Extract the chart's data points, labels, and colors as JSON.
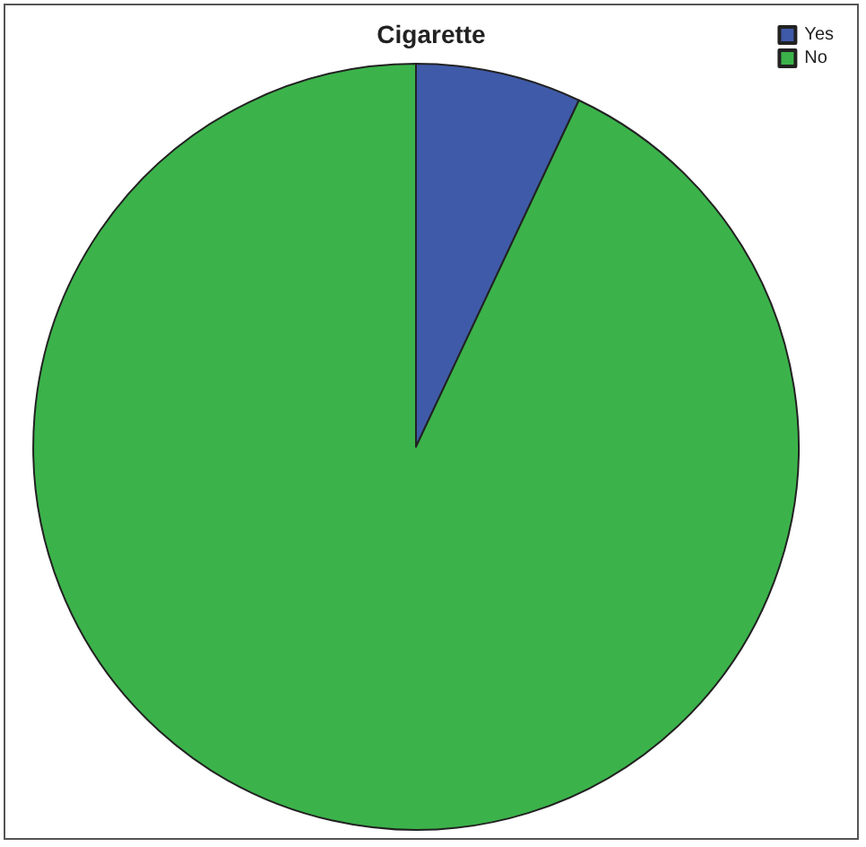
{
  "chart_data": {
    "type": "pie",
    "title": "Cigarette",
    "categories": [
      "Yes",
      "No"
    ],
    "values": [
      7,
      93
    ],
    "colors": [
      "#3f5aa8",
      "#3bb34a"
    ],
    "legend": "top right"
  }
}
